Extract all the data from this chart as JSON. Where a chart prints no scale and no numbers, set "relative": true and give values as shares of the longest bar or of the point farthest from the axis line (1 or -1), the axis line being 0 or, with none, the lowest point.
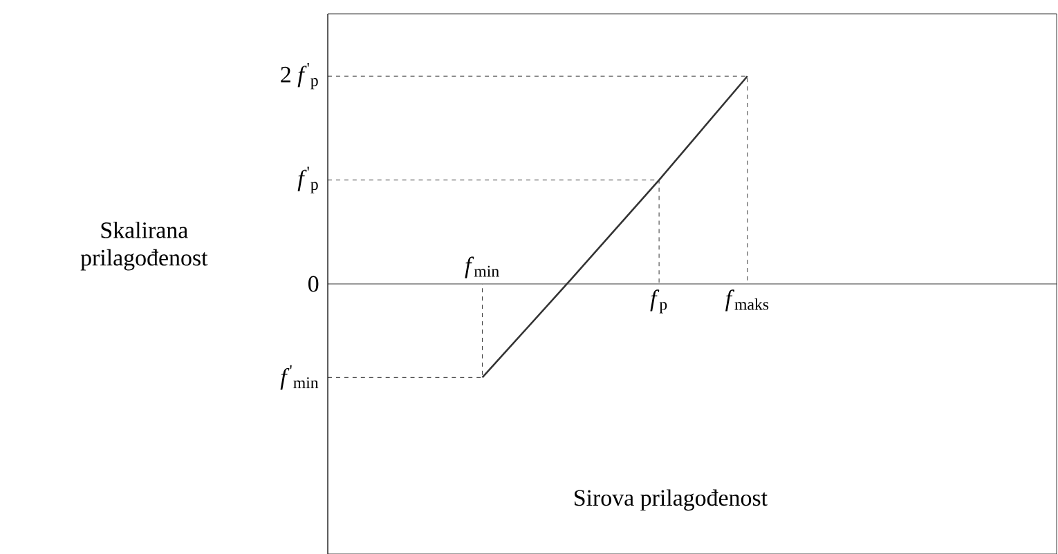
{
  "chart_data": {
    "type": "line",
    "relative": true,
    "xlabel": "Sirova prilagođenost",
    "categories": [
      "*f*$_{min}$",
      null,
      "*f*$_{p}$",
      "*f*$_{maks}$"
    ],
    "values": [
      -0.45,
      0.02,
      0.5,
      1
    ],
    "color": "#333333",
    "annotations": [
      "2 *f*$^{'}$$_{p}$",
      "*f*$^{'}$$_{p}$",
      "0",
      "*f*$^{'}$$_{min}$",
      "Skalirana prilagođenost"
    ]
  }
}
